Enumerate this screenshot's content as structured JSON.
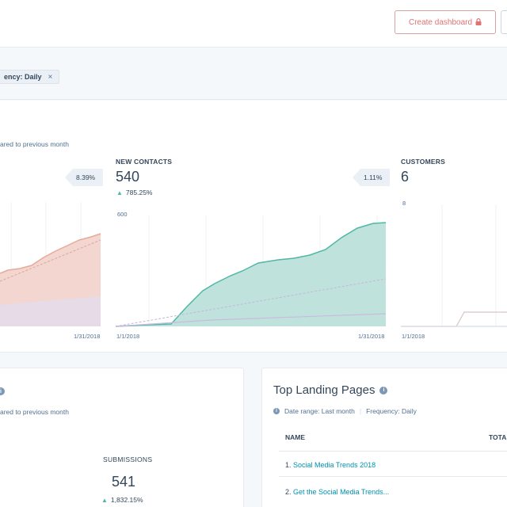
{
  "header": {
    "create_dashboard_label": "Create dashboard",
    "lock_icon": "lock-icon"
  },
  "filter": {
    "label": "Frequency:",
    "label_visible": "ency:",
    "value": "Daily",
    "close_glyph": "×"
  },
  "top_panel": {
    "subtitle_visible": "ared to previous month",
    "metrics": [
      {
        "id": "left",
        "label": "",
        "value": "",
        "change": "",
        "compare_pct": "8.39%",
        "end_date": "1/31/2018"
      },
      {
        "id": "new-contacts",
        "label": "NEW CONTACTS",
        "value": "540",
        "change": "785.25%",
        "compare_pct": "1.11%",
        "axis_max": "600",
        "start_date": "1/1/2018",
        "end_date": "1/31/2018"
      },
      {
        "id": "customers",
        "label": "CUSTOMERS",
        "value": "6",
        "axis_max": "8",
        "start_date": "1/1/2018"
      }
    ]
  },
  "form_card": {
    "subtitle_visible": "ared to previous month",
    "submissions_label": "SUBMISSIONS",
    "submissions_value": "541",
    "submissions_change": "1,832.15%"
  },
  "landing_pages": {
    "title": "Top Landing Pages",
    "date_range": "Date range: Last month",
    "frequency": "Frequency: Daily",
    "col_name": "NAME",
    "col_total": "TOTA",
    "rows": [
      {
        "num": "1.",
        "name": "Social Media Trends 2018"
      },
      {
        "num": "2.",
        "name": "Get the Social Media Trends..."
      }
    ]
  },
  "colors": {
    "accent_teal": "#4fb7a6",
    "accent_salmon": "#e9a99a",
    "button_red": "#e07272",
    "link": "#0091ae",
    "text": "#33475b"
  }
}
